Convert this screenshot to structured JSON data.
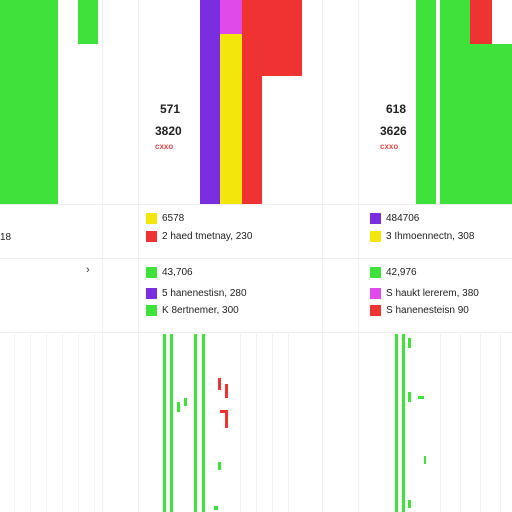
{
  "colors": {
    "green": "#3ee23a",
    "purple": "#7a2ee0",
    "magenta": "#e04ae8",
    "yellow": "#f2e60b",
    "red": "#ef3333",
    "subred": "#e04b4b"
  },
  "left_panel": {
    "row_text": "18",
    "arrow_icon": "chevron-right-icon",
    "arrow_glyph": "›"
  },
  "middle_panel": {
    "value_top": "571",
    "value_main": "3820",
    "value_sub": "cxxo",
    "legend_a": [
      {
        "color": "#f2e60b",
        "text": "6578"
      },
      {
        "color": "#ef3333",
        "text": "2 haed tmetnay, 230"
      }
    ],
    "legend_b": [
      {
        "color": "#3ee23a",
        "text": "43,706"
      },
      {
        "color": "#7a2ee0",
        "text": "5 hanenestisn, 280"
      },
      {
        "color": "#3ee23a",
        "text": "K 8ertnemer, 300"
      }
    ]
  },
  "right_panel": {
    "value_top": "618",
    "value_main": "3626",
    "value_sub": "cxxo",
    "legend_a": [
      {
        "color": "#7a2ee0",
        "text": "484706"
      },
      {
        "color": "#f2e60b",
        "text": "3 Ihmoennectn, 308"
      }
    ],
    "legend_b": [
      {
        "color": "#3ee23a",
        "text": "42,976"
      },
      {
        "color": "#e04ae8",
        "text": "S haukt lererem, 380"
      },
      {
        "color": "#ef3333",
        "text": "S hanenesteisn 90"
      }
    ]
  }
}
